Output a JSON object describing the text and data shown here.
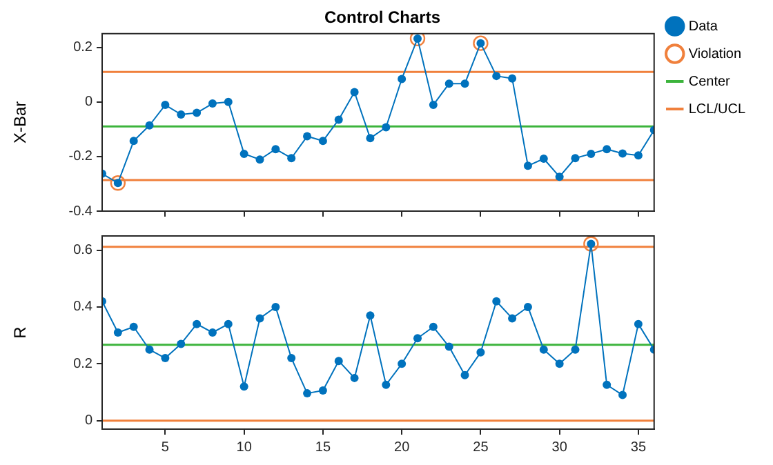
{
  "chart_data": [
    {
      "type": "line",
      "title": "Control Charts",
      "ylabel": "X-Bar",
      "x": [
        1,
        2,
        3,
        4,
        5,
        6,
        7,
        8,
        9,
        10,
        11,
        12,
        13,
        14,
        15,
        16,
        17,
        18,
        19,
        20,
        21,
        22,
        23,
        24,
        25,
        26,
        27,
        28,
        29,
        30,
        31,
        32,
        33,
        34,
        35,
        36
      ],
      "xlim": [
        1,
        36
      ],
      "xticks": [
        5,
        10,
        15,
        20,
        25,
        30,
        35
      ],
      "ylim": [
        -0.4,
        0.25
      ],
      "yticks": [
        -0.4,
        -0.2,
        0,
        0.2
      ],
      "tick_labels": "y",
      "grid": false,
      "legend": "top right",
      "marker": "circle",
      "series": [
        {
          "name": "Data",
          "color": "#0072bd",
          "values": [
            -0.263,
            -0.297,
            -0.143,
            -0.086,
            -0.011,
            -0.046,
            -0.04,
            -0.006,
            0,
            -0.19,
            -0.211,
            -0.173,
            -0.206,
            -0.126,
            -0.143,
            -0.065,
            0.036,
            -0.133,
            -0.093,
            0.084,
            0.232,
            -0.011,
            0.067,
            0.067,
            0.215,
            0.095,
            0.086,
            -0.234,
            -0.208,
            -0.274,
            -0.206,
            -0.19,
            -0.173,
            -0.189,
            -0.196,
            -0.103
          ]
        },
        {
          "name": "Violation",
          "type": "scatter",
          "color": "#f0803c",
          "x": [
            2,
            21,
            25
          ],
          "values": [
            -0.297,
            0.232,
            0.215
          ]
        },
        {
          "name": "Center",
          "color": "#3cb43c",
          "marker": "none",
          "x": [
            1,
            36
          ],
          "values": [
            -0.09,
            -0.09
          ]
        },
        {
          "name": "LCL/UCL",
          "color": "#f0803c",
          "marker": "none",
          "x": [
            1,
            36
          ],
          "values": [
            0.11,
            0.11
          ]
        },
        {
          "color": "#f0803c",
          "marker": "none",
          "x": [
            1,
            36
          ],
          "values": [
            -0.286,
            -0.286
          ]
        }
      ]
    },
    {
      "type": "line",
      "ylabel": "R",
      "x": [
        1,
        2,
        3,
        4,
        5,
        6,
        7,
        8,
        9,
        10,
        11,
        12,
        13,
        14,
        15,
        16,
        17,
        18,
        19,
        20,
        21,
        22,
        23,
        24,
        25,
        26,
        27,
        28,
        29,
        30,
        31,
        32,
        33,
        34,
        35,
        36
      ],
      "xlim": [
        1,
        36
      ],
      "xticks": [
        5,
        10,
        15,
        20,
        25,
        30,
        35
      ],
      "ylim": [
        -0.03,
        0.65
      ],
      "yticks": [
        0,
        0.2,
        0.4,
        0.6
      ],
      "grid": false,
      "marker": "circle",
      "series": [
        {
          "color": "#0072bd",
          "values": [
            0.42,
            0.31,
            0.33,
            0.25,
            0.22,
            0.27,
            0.34,
            0.31,
            0.34,
            0.12,
            0.36,
            0.4,
            0.22,
            0.096,
            0.106,
            0.21,
            0.15,
            0.37,
            0.126,
            0.2,
            0.29,
            0.33,
            0.26,
            0.16,
            0.24,
            0.42,
            0.36,
            0.4,
            0.25,
            0.2,
            0.25,
            0.622,
            0.126,
            0.09,
            0.34,
            0.25
          ]
        },
        {
          "type": "scatter",
          "color": "#f0803c",
          "x": [
            32
          ],
          "values": [
            0.622
          ]
        },
        {
          "color": "#3cb43c",
          "marker": "none",
          "x": [
            1,
            36
          ],
          "values": [
            0.267,
            0.267
          ]
        },
        {
          "color": "#f0803c",
          "marker": "none",
          "x": [
            1,
            36
          ],
          "values": [
            0.612,
            0.612
          ]
        },
        {
          "color": "#f0803c",
          "marker": "none",
          "x": [
            1,
            36
          ],
          "values": [
            0,
            0
          ]
        }
      ]
    }
  ]
}
